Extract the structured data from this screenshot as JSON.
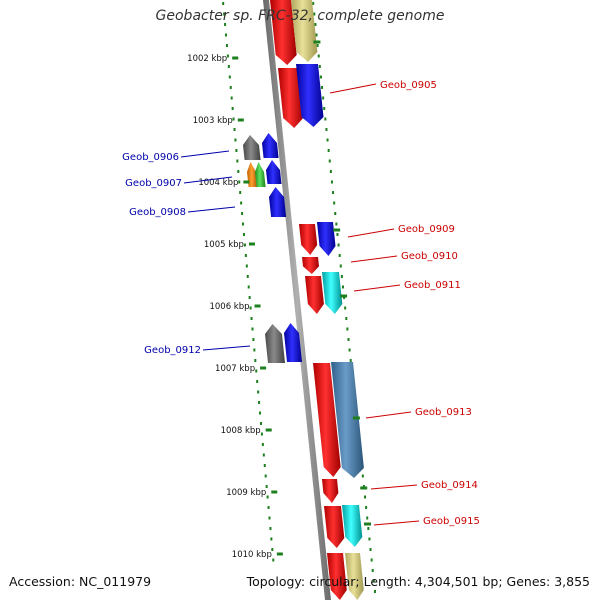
{
  "title": "Geobacter sp. FRC-32, complete genome",
  "accession": "Accession: NC_011979",
  "topology": "Topology: circular; Length: 4,304,501 bp; Genes: 3,855",
  "colors": {
    "backbone": "#8c8c8c",
    "ticks": "#1e7f1e",
    "label_forward": "#cc0000",
    "label_reverse": "#0000aa",
    "leader_forward": "#cc0000",
    "leader_reverse": "#0000aa"
  },
  "ticks": [
    "1002 kbp",
    "1003 kbp",
    "1004 kbp",
    "1005 kbp",
    "1006 kbp",
    "1007 kbp",
    "1008 kbp",
    "1009 kbp",
    "1010 kbp"
  ],
  "genes": [
    {
      "label": "",
      "strand": "forward",
      "lane": "inner",
      "color": "red"
    },
    {
      "label": "",
      "strand": "forward",
      "lane": "outer",
      "color": "khaki"
    },
    {
      "label": "",
      "strand": "forward",
      "lane": "inner",
      "color": "red"
    },
    {
      "label": "Geob_0905",
      "strand": "forward",
      "lane": "outer",
      "color": "blue"
    },
    {
      "label": "Geob_0906",
      "strand": "reverse",
      "lane": "outer",
      "color": "dimgray"
    },
    {
      "label": "",
      "strand": "reverse",
      "lane": "inner",
      "color": "blue"
    },
    {
      "label": "Geob_0907",
      "strand": "reverse",
      "lane": "outer",
      "color": "orange"
    },
    {
      "label": "",
      "strand": "reverse",
      "lane": "outer",
      "color": "limegreen"
    },
    {
      "label": "",
      "strand": "reverse",
      "lane": "inner",
      "color": "blue"
    },
    {
      "label": "Geob_0908",
      "strand": "reverse",
      "lane": "inner",
      "color": "blue"
    },
    {
      "label": "",
      "strand": "forward",
      "lane": "inner",
      "color": "red"
    },
    {
      "label": "Geob_0909",
      "strand": "forward",
      "lane": "outer",
      "color": "blue"
    },
    {
      "label": "Geob_0910",
      "strand": "forward",
      "lane": "inner",
      "color": "red"
    },
    {
      "label": "",
      "strand": "forward",
      "lane": "inner",
      "color": "red"
    },
    {
      "label": "Geob_0911",
      "strand": "forward",
      "lane": "outer",
      "color": "cyan"
    },
    {
      "label": "Geob_0912",
      "strand": "reverse",
      "lane": "outer",
      "color": "dimgray"
    },
    {
      "label": "",
      "strand": "reverse",
      "lane": "inner",
      "color": "blue"
    },
    {
      "label": "",
      "strand": "forward",
      "lane": "inner",
      "color": "red"
    },
    {
      "label": "Geob_0913",
      "strand": "forward",
      "lane": "outer",
      "color": "steelblue"
    },
    {
      "label": "Geob_0914",
      "strand": "forward",
      "lane": "inner",
      "color": "red"
    },
    {
      "label": "",
      "strand": "forward",
      "lane": "inner",
      "color": "red"
    },
    {
      "label": "Geob_0915",
      "strand": "forward",
      "lane": "outer",
      "color": "cyan"
    },
    {
      "label": "",
      "strand": "forward",
      "lane": "inner",
      "color": "red"
    },
    {
      "label": "",
      "strand": "forward",
      "lane": "outer",
      "color": "khaki"
    }
  ]
}
